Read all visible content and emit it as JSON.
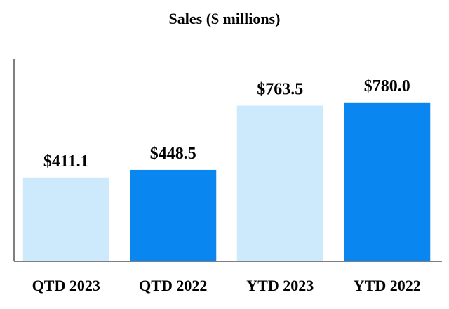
{
  "chart_data": {
    "type": "bar",
    "title": "Sales ($ millions)",
    "categories": [
      "QTD 2023",
      "QTD 2022",
      "YTD 2023",
      "YTD 2022"
    ],
    "values": [
      411.1,
      448.5,
      763.5,
      780.0
    ],
    "value_labels": [
      "$411.1",
      "$448.5",
      "$763.5",
      "$780.0"
    ],
    "bar_colors": [
      "#cdeafc",
      "#0a86f0",
      "#cdeafc",
      "#0a86f0"
    ],
    "axis_color": "#7f7f7f",
    "xlabel": "",
    "ylabel": "",
    "ylim": [
      0,
      1000
    ],
    "grid": false
  }
}
